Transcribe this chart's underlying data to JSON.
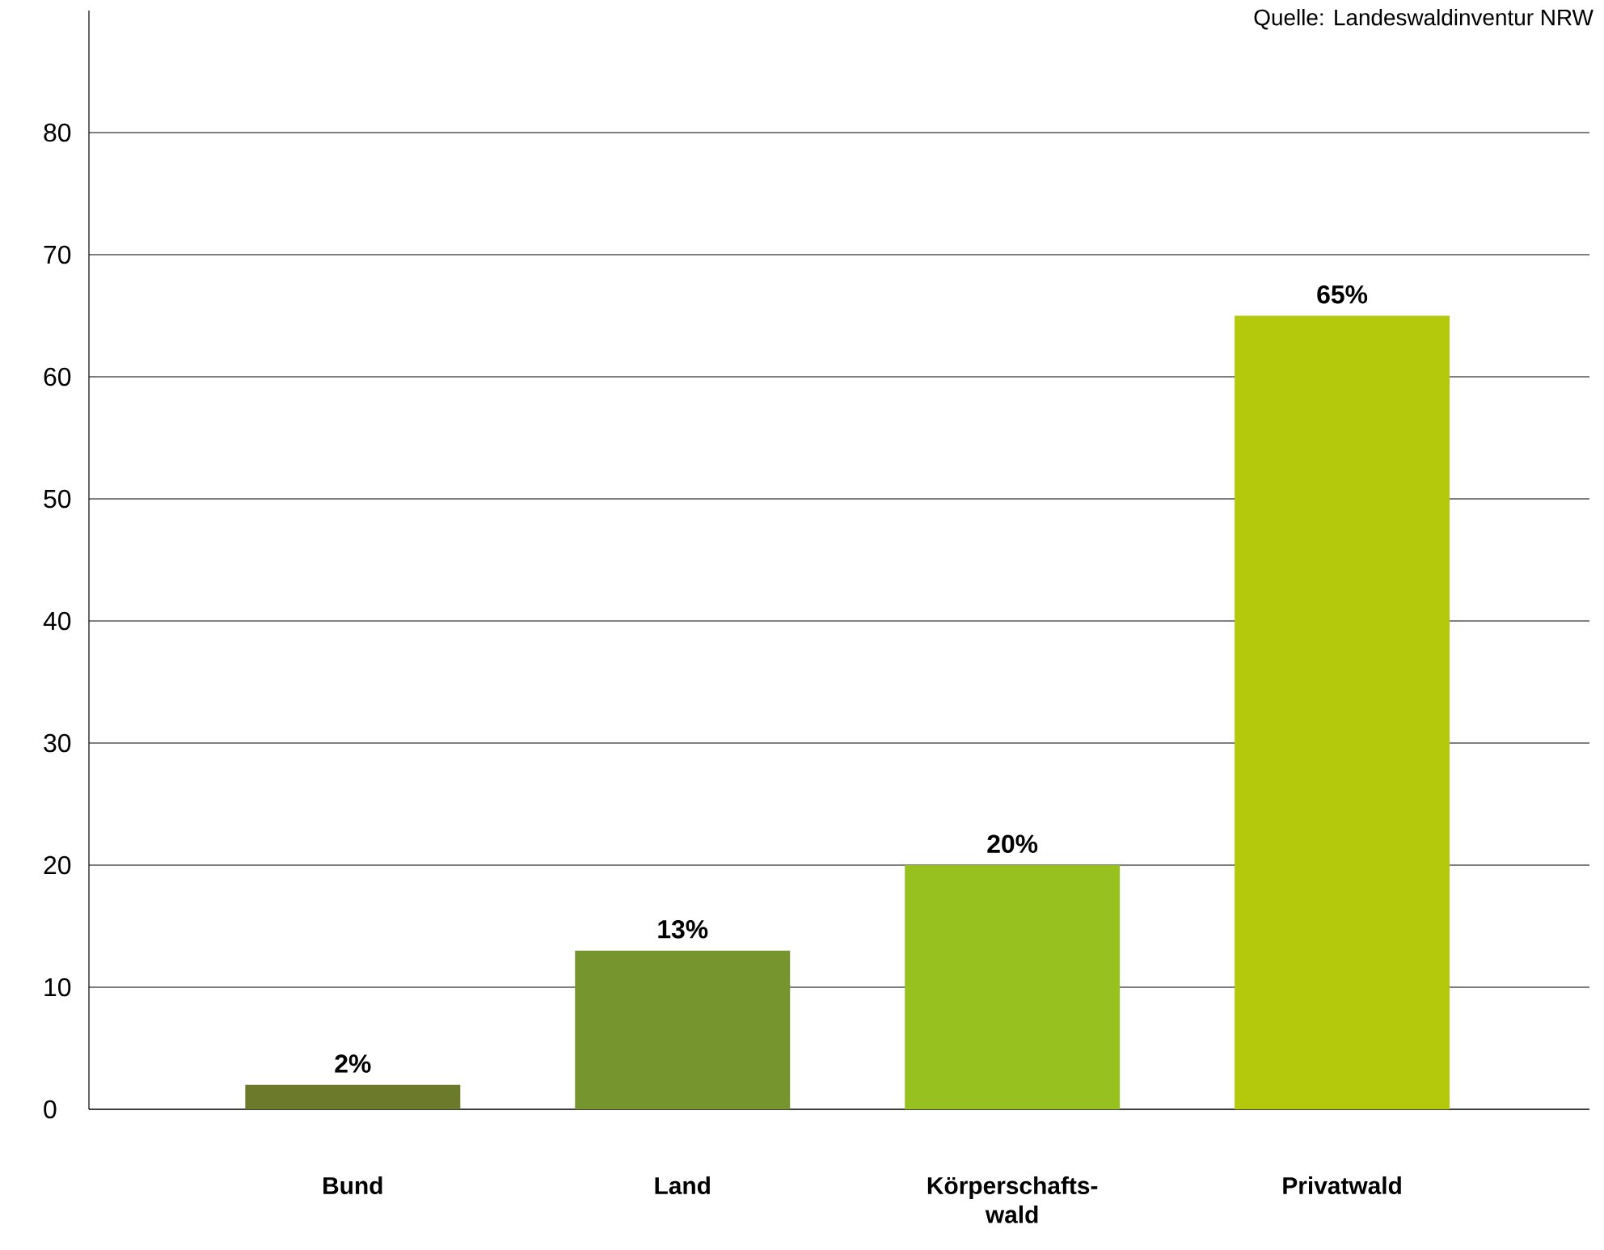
{
  "chart_data": {
    "type": "bar",
    "categories": [
      "Bund",
      "Land",
      "Körperschafts-wald",
      "Privatwald"
    ],
    "values": [
      2,
      13,
      20,
      65
    ],
    "colors": [
      "#6c7a2b",
      "#76952e",
      "#96c11f",
      "#b4c90b"
    ],
    "value_labels": [
      "2%",
      "13%",
      "20%",
      "65%"
    ],
    "ylim": [
      0,
      90
    ],
    "yticks": [
      0,
      10,
      20,
      30,
      40,
      50,
      60,
      70,
      80
    ],
    "grid": "y",
    "annotations": [
      "Quelle: Landeswaldinventur NRW"
    ]
  }
}
